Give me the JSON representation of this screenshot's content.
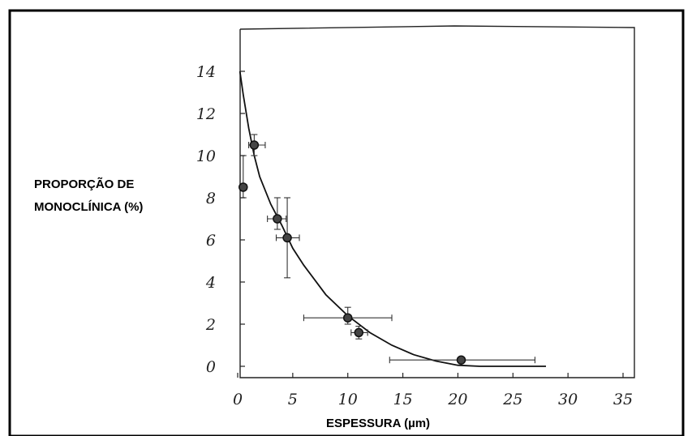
{
  "chart_data": {
    "type": "scatter",
    "title": "",
    "xlabel": "ESPESSURA (µm)",
    "ylabel_lines": [
      "PROPORÇÃO DE",
      "MONOCLÍNICA (%)"
    ],
    "xlim": [
      0,
      35
    ],
    "ylim": [
      0,
      14
    ],
    "x_ticks": [
      0,
      5,
      10,
      15,
      20,
      25,
      30,
      35
    ],
    "y_ticks": [
      0,
      2,
      4,
      6,
      8,
      10,
      12,
      14
    ],
    "grid": false,
    "points": [
      {
        "x": 0.5,
        "y": 8.5,
        "x_err": [
          0.5,
          0.8
        ],
        "y_err": [
          8.0,
          10.0
        ]
      },
      {
        "x": 1.5,
        "y": 10.5,
        "x_err": [
          1.0,
          2.5
        ],
        "y_err": [
          10.0,
          11.0
        ]
      },
      {
        "x": 3.6,
        "y": 7.0,
        "x_err": [
          2.7,
          4.4
        ],
        "y_err": [
          6.5,
          8.0
        ]
      },
      {
        "x": 4.5,
        "y": 6.1,
        "x_err": [
          3.5,
          5.6
        ],
        "y_err": [
          4.2,
          8.0
        ]
      },
      {
        "x": 10.0,
        "y": 2.3,
        "x_err": [
          6.0,
          14.0
        ],
        "y_err": [
          2.0,
          2.8
        ]
      },
      {
        "x": 11.0,
        "y": 1.6,
        "x_err": [
          10.3,
          11.8
        ],
        "y_err": [
          1.3,
          1.9
        ]
      },
      {
        "x": 20.3,
        "y": 0.3,
        "x_err": [
          13.8,
          27.0
        ],
        "y_err": [
          0.3,
          0.3
        ]
      }
    ],
    "fit_curve": {
      "x": [
        0.2,
        0.5,
        1,
        1.5,
        2,
        3,
        4,
        5,
        6,
        8,
        10,
        12,
        14,
        16,
        18,
        20,
        22,
        25,
        28
      ],
      "y": [
        14.0,
        12.9,
        11.3,
        10.0,
        9.0,
        7.7,
        6.7,
        5.6,
        4.8,
        3.4,
        2.4,
        1.6,
        1.0,
        0.55,
        0.25,
        0.05,
        0.0,
        0.0,
        0.0
      ]
    }
  }
}
